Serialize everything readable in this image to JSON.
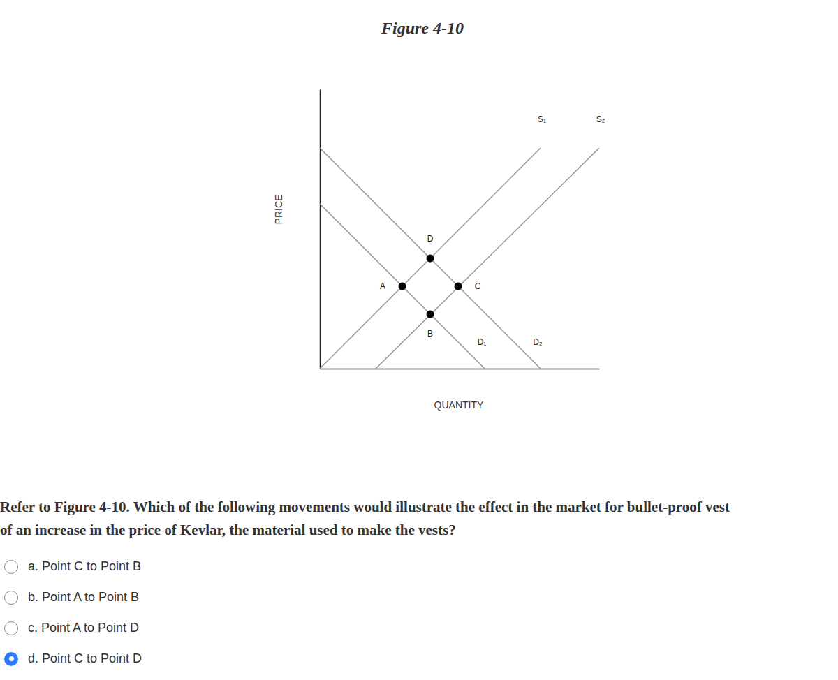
{
  "chart_data": {
    "type": "line",
    "title": "Figure 4-10",
    "x_label": "QUANTITY",
    "y_label": "PRICE",
    "xlim": [
      0,
      100
    ],
    "ylim": [
      0,
      100
    ],
    "xticks": [],
    "yticks": [],
    "tick_labels": false,
    "grid": false,
    "color": "#8c8c8c",
    "series": [
      {
        "name": "S₁",
        "x": [
          0,
          79
        ],
        "values": [
          0,
          79
        ]
      },
      {
        "name": "S₂",
        "x": [
          20,
          100
        ],
        "values": [
          0,
          79
        ]
      },
      {
        "name": "D₁",
        "x": [
          0,
          59
        ],
        "values": [
          59,
          0
        ]
      },
      {
        "name": "D₂",
        "x": [
          0,
          79
        ],
        "values": [
          79,
          0
        ]
      },
      {
        "type": "scatter",
        "marker": "circle",
        "color": "#000000",
        "labels": [
          "A",
          "B",
          "C",
          "D"
        ],
        "x": [
          29.5,
          39.5,
          49.5,
          39.5
        ],
        "values": [
          29.5,
          19.5,
          29.5,
          39.5
        ]
      }
    ]
  },
  "question": {
    "lines": [
      "Refer to Figure 4-10. Which of the following movements would illustrate the effect in the market for bullet-proof vest",
      "of an increase in the price of Kevlar, the material used to make the vests?"
    ],
    "options": [
      {
        "label": "a. Point C to Point B",
        "selected": false
      },
      {
        "label": "b. Point A to Point B",
        "selected": false
      },
      {
        "label": "c. Point A to Point D",
        "selected": false
      },
      {
        "label": "d. Point C to Point D",
        "selected": true
      }
    ]
  }
}
